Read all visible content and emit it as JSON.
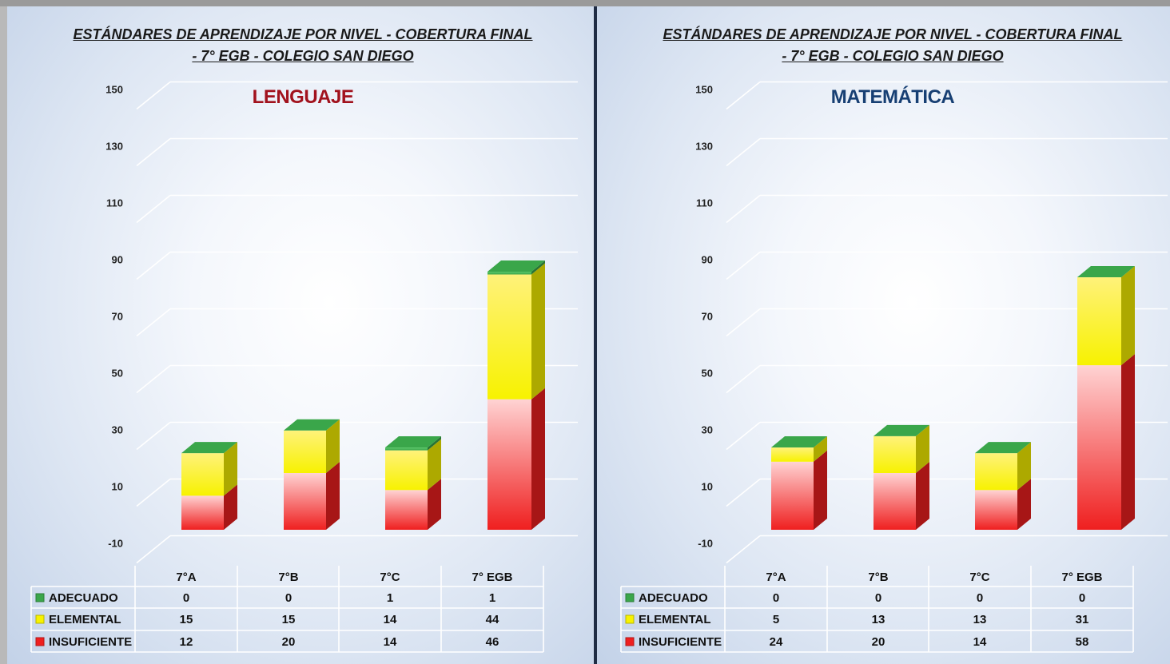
{
  "colors": {
    "adecuado": "#3aa64a",
    "elemental": "#f7f200",
    "insuficiente": "#ef1f1f",
    "lenguaje_title": "#a1121d",
    "matematica_title": "#173f73"
  },
  "chart_data": [
    {
      "type": "bar",
      "stacked": true,
      "title": "ESTÁNDARES DE APRENDIZAJE POR NIVEL - COBERTURA FINAL - 7° EGB - COLEGIO SAN DIEGO",
      "title_lines": [
        "ESTÁNDARES DE APRENDIZAJE POR NIVEL - COBERTURA FINAL",
        "- 7° EGB - COLEGIO SAN DIEGO"
      ],
      "subtitle": "LENGUAJE",
      "ylim": [
        -10,
        150
      ],
      "yticks": [
        -10,
        10,
        30,
        50,
        70,
        90,
        110,
        130,
        150
      ],
      "categories": [
        "7°A",
        "7°B",
        "7°C",
        "7° EGB"
      ],
      "series": [
        {
          "name": "ADECUADO",
          "color_key": "adecuado",
          "values": [
            0,
            0,
            1,
            1
          ]
        },
        {
          "name": "ELEMENTAL",
          "color_key": "elemental",
          "values": [
            15,
            15,
            14,
            44
          ]
        },
        {
          "name": "INSUFICIENTE",
          "color_key": "insuficiente",
          "values": [
            12,
            20,
            14,
            46
          ]
        }
      ],
      "data_table": true,
      "grid": true
    },
    {
      "type": "bar",
      "stacked": true,
      "title": "ESTÁNDARES DE APRENDIZAJE POR NIVEL - COBERTURA FINAL - 7° EGB - COLEGIO SAN DIEGO",
      "title_lines": [
        "ESTÁNDARES DE APRENDIZAJE POR NIVEL - COBERTURA FINAL",
        "- 7° EGB - COLEGIO SAN DIEGO"
      ],
      "subtitle": "MATEMÁTICA",
      "ylim": [
        -10,
        150
      ],
      "yticks": [
        -10,
        10,
        30,
        50,
        70,
        90,
        110,
        130,
        150
      ],
      "categories": [
        "7°A",
        "7°B",
        "7°C",
        "7° EGB"
      ],
      "series": [
        {
          "name": "ADECUADO",
          "color_key": "adecuado",
          "values": [
            0,
            0,
            0,
            0
          ]
        },
        {
          "name": "ELEMENTAL",
          "color_key": "elemental",
          "values": [
            5,
            13,
            13,
            31
          ]
        },
        {
          "name": "INSUFICIENTE",
          "color_key": "insuficiente",
          "values": [
            24,
            20,
            14,
            58
          ]
        }
      ],
      "data_table": true,
      "grid": true
    }
  ]
}
